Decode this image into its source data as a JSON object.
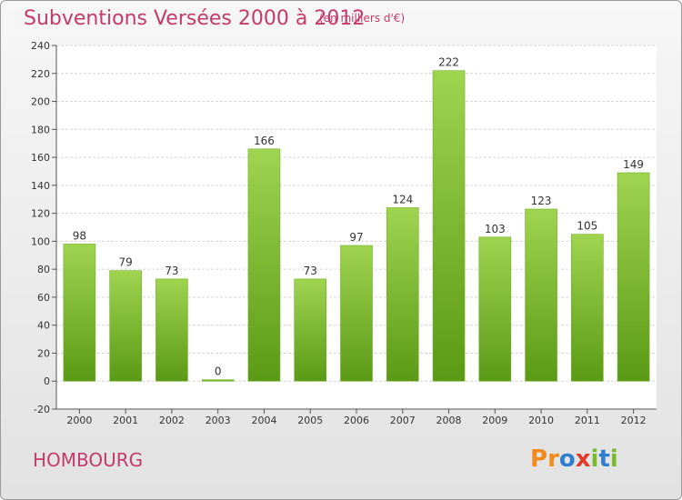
{
  "header": {
    "title": "Subventions Versées 2000 à 2012",
    "subtitle": "(en milliers d'€)"
  },
  "footer": {
    "commune": "HOMBOURG",
    "logo_text": "Proxiti"
  },
  "colors": {
    "title": "#c43a6a",
    "bar_top": "#9fd44f",
    "bar_bottom": "#5b9a16",
    "logo_letters": [
      "#f08a1c",
      "#f08a1c",
      "#2f7fd0",
      "#e23a2a",
      "#7ab82e",
      "#2f7fd0",
      "#7ab82e"
    ]
  },
  "chart_data": {
    "type": "bar",
    "categories": [
      "2000",
      "2001",
      "2002",
      "2003",
      "2004",
      "2005",
      "2006",
      "2007",
      "2008",
      "2009",
      "2010",
      "2011",
      "2012"
    ],
    "values": [
      98,
      79,
      73,
      0,
      166,
      73,
      97,
      124,
      222,
      103,
      123,
      105,
      149
    ],
    "ylim": [
      -20,
      240
    ],
    "yticks": [
      -20,
      0,
      20,
      40,
      60,
      80,
      100,
      120,
      140,
      160,
      180,
      200,
      220,
      240
    ],
    "grid": true,
    "xlabel": "",
    "ylabel": ""
  }
}
